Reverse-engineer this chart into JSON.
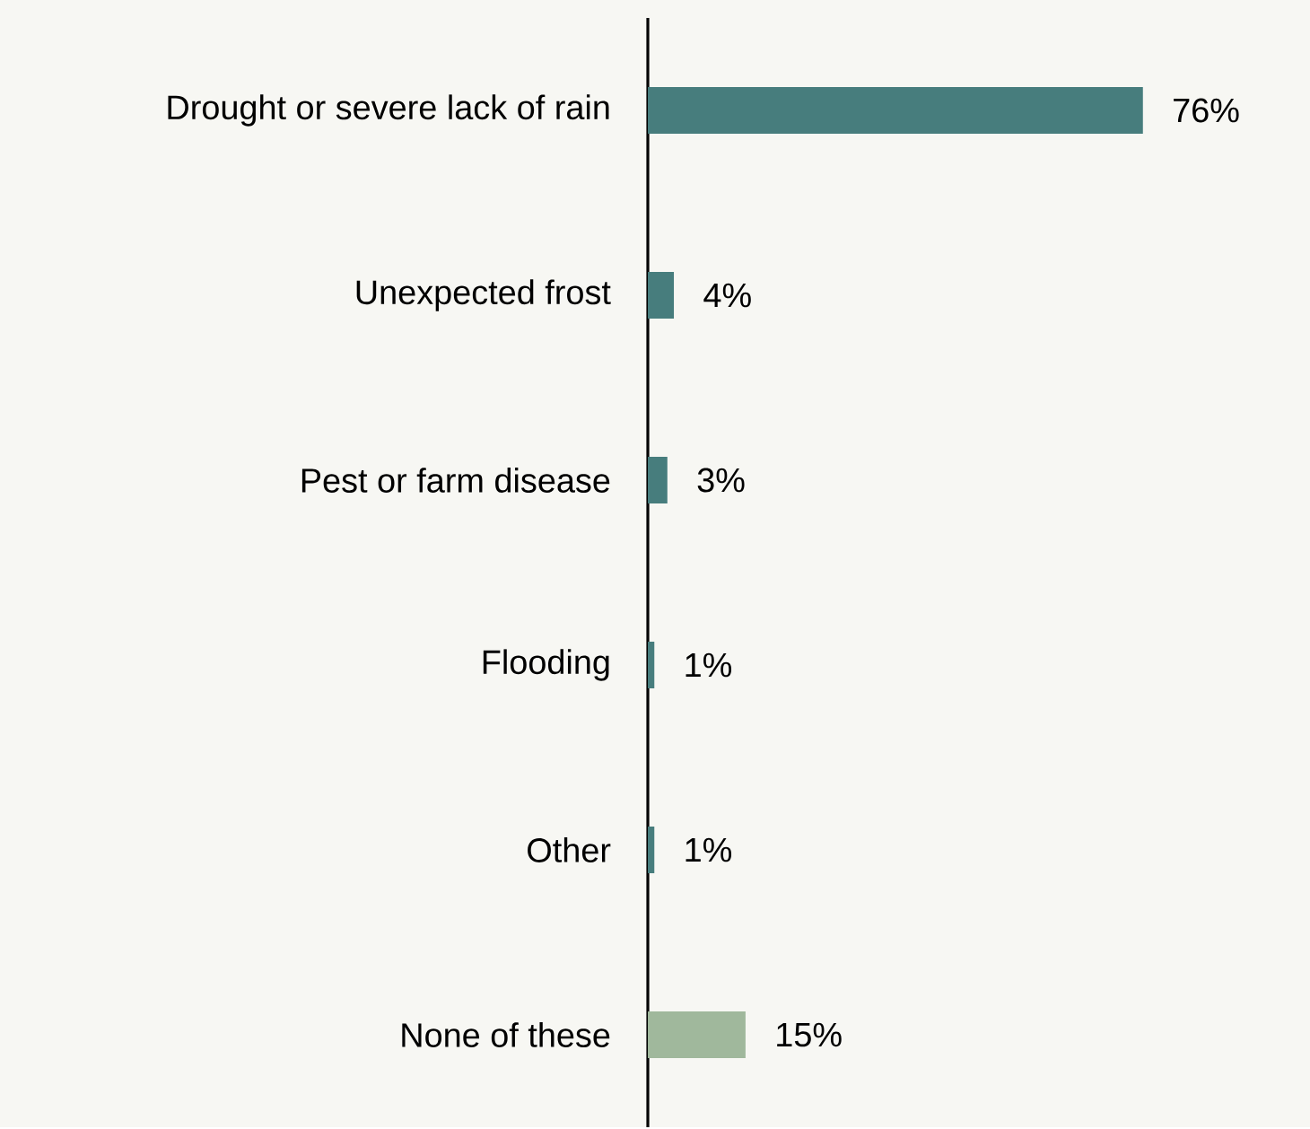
{
  "chart_data": {
    "type": "bar",
    "orientation": "horizontal",
    "categories": [
      "Drought or severe lack of rain",
      "Unexpected frost",
      "Pest or farm disease",
      "Flooding",
      "Other",
      "None of these"
    ],
    "values": [
      76,
      4,
      3,
      1,
      1,
      15
    ],
    "colors": [
      "#477d7d",
      "#477d7d",
      "#477d7d",
      "#477d7d",
      "#477d7d",
      "#a0b89c"
    ],
    "value_labels": [
      "76%",
      "4%",
      "3%",
      "1%",
      "1%",
      "15%"
    ]
  }
}
